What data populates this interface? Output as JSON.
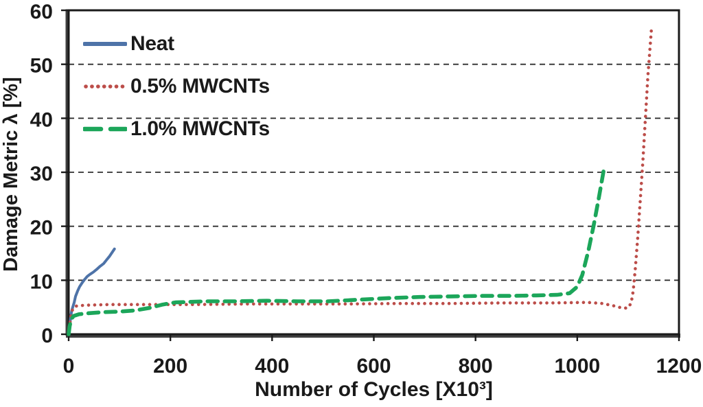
{
  "chart_data": {
    "type": "line",
    "title": "",
    "xlabel": "Number of Cycles [X10³]",
    "ylabel": "Damage Metric λ [%]",
    "xlim": [
      0,
      1200
    ],
    "ylim": [
      0,
      60
    ],
    "x_ticks": [
      0,
      200,
      400,
      600,
      800,
      1000,
      1200
    ],
    "y_ticks": [
      0,
      10,
      20,
      30,
      40,
      50,
      60
    ],
    "grid": {
      "lines": "horizontal",
      "style": "dashed",
      "color": "#2f2f2f"
    },
    "axis_color": "#1a1a1a",
    "heavy_axis_color": "#3f3f3f",
    "text_color": "#1a1a1a",
    "background_color": "#ffffff",
    "legend": {
      "position": "inside-top-left"
    },
    "series": [
      {
        "name": "Neat",
        "color": "#4e73a8",
        "style": "solid",
        "points": [
          [
            0,
            0
          ],
          [
            2,
            1.6
          ],
          [
            4,
            3.2
          ],
          [
            6,
            4.3
          ],
          [
            8,
            5.0
          ],
          [
            11,
            5.9
          ],
          [
            13.5,
            7.0
          ],
          [
            17.5,
            8.0
          ],
          [
            21.5,
            8.8
          ],
          [
            27,
            9.6
          ],
          [
            31,
            10.1
          ],
          [
            36.5,
            10.7
          ],
          [
            42,
            11.1
          ],
          [
            48.5,
            11.5
          ],
          [
            55,
            12.0
          ],
          [
            62,
            12.6
          ],
          [
            69,
            13.1
          ],
          [
            74,
            13.7
          ],
          [
            80,
            14.4
          ],
          [
            85,
            15.1
          ],
          [
            90,
            15.8
          ]
        ]
      },
      {
        "name": "0.5% MWCNTs",
        "color": "#bc4d49",
        "style": "dotted",
        "points": [
          [
            0,
            0
          ],
          [
            2,
            1.5
          ],
          [
            4,
            3.2
          ],
          [
            7,
            4.4
          ],
          [
            10,
            5.0
          ],
          [
            14,
            5.2
          ],
          [
            20,
            5.3
          ],
          [
            40,
            5.4
          ],
          [
            80,
            5.5
          ],
          [
            150,
            5.5
          ],
          [
            250,
            5.5
          ],
          [
            350,
            5.6
          ],
          [
            450,
            5.6
          ],
          [
            550,
            5.6
          ],
          [
            650,
            5.7
          ],
          [
            750,
            5.7
          ],
          [
            850,
            5.8
          ],
          [
            950,
            5.8
          ],
          [
            1020,
            5.9
          ],
          [
            1050,
            5.7
          ],
          [
            1075,
            5.2
          ],
          [
            1090,
            4.8
          ],
          [
            1100,
            4.9
          ],
          [
            1106,
            5.8
          ],
          [
            1110,
            8
          ],
          [
            1114,
            12
          ],
          [
            1119,
            18
          ],
          [
            1124,
            25
          ],
          [
            1129,
            32
          ],
          [
            1134,
            40
          ],
          [
            1139,
            48
          ],
          [
            1143,
            53
          ],
          [
            1146,
            56.7
          ]
        ]
      },
      {
        "name": "1.0% MWCNTs",
        "color": "#1ca65a",
        "style": "dashed",
        "points": [
          [
            0,
            0
          ],
          [
            2,
            1.5
          ],
          [
            5,
            2.8
          ],
          [
            10,
            3.4
          ],
          [
            20,
            3.7
          ],
          [
            40,
            3.9
          ],
          [
            70,
            4.1
          ],
          [
            100,
            4.2
          ],
          [
            130,
            4.4
          ],
          [
            160,
            4.9
          ],
          [
            185,
            5.5
          ],
          [
            210,
            5.9
          ],
          [
            270,
            6.1
          ],
          [
            330,
            6.1
          ],
          [
            390,
            6.2
          ],
          [
            450,
            6.1
          ],
          [
            510,
            6.1
          ],
          [
            570,
            6.4
          ],
          [
            630,
            6.7
          ],
          [
            690,
            6.9
          ],
          [
            750,
            7.0
          ],
          [
            810,
            7.1
          ],
          [
            870,
            7.1
          ],
          [
            920,
            7.2
          ],
          [
            960,
            7.3
          ],
          [
            985,
            7.6
          ],
          [
            1000,
            8.8
          ],
          [
            1010,
            11
          ],
          [
            1022,
            15.5
          ],
          [
            1032,
            20
          ],
          [
            1042,
            25
          ],
          [
            1052,
            30.4
          ]
        ]
      }
    ]
  }
}
